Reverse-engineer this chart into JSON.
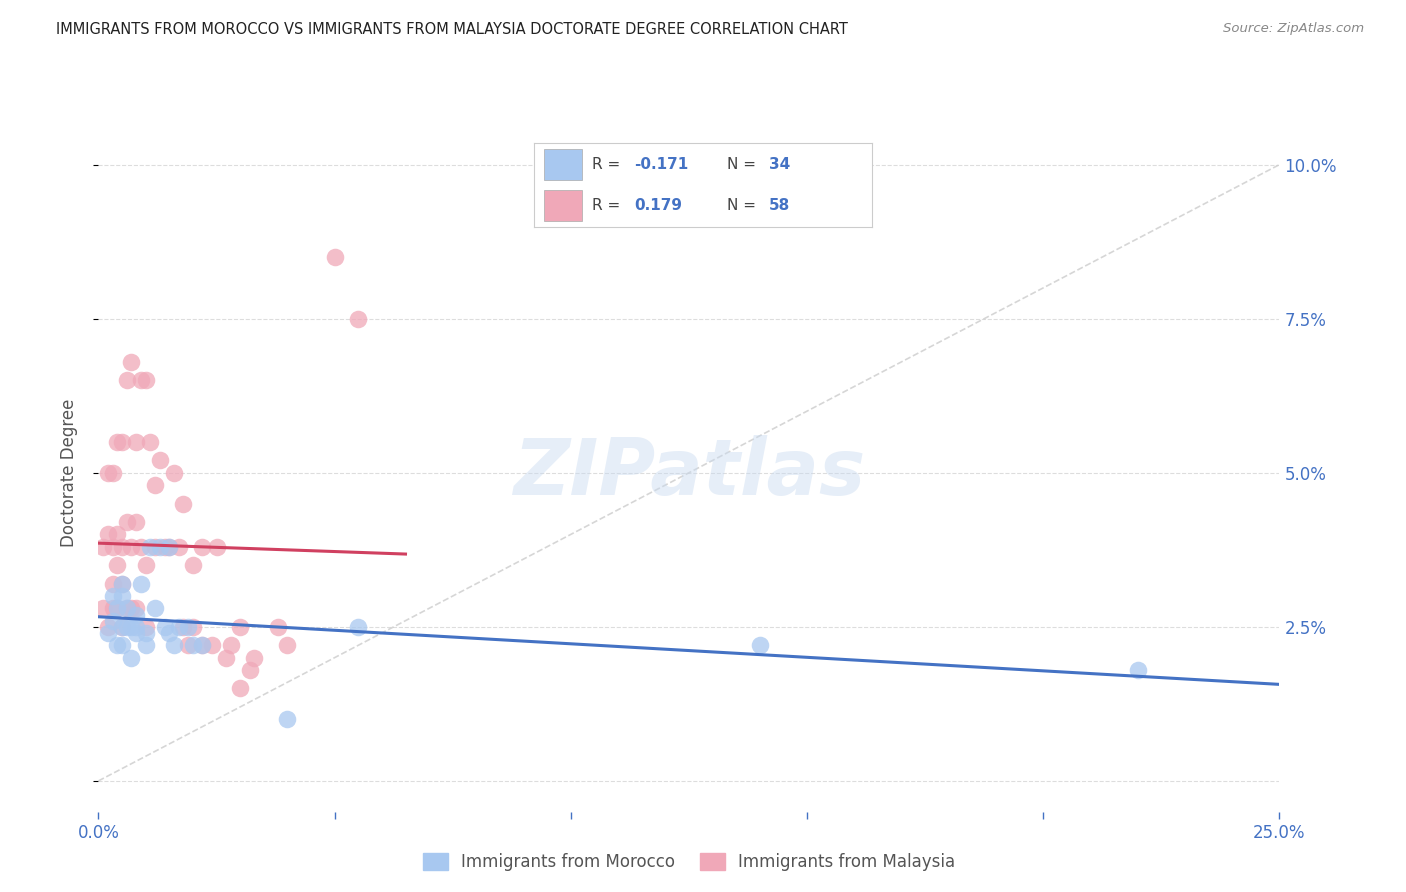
{
  "title": "IMMIGRANTS FROM MOROCCO VS IMMIGRANTS FROM MALAYSIA DOCTORATE DEGREE CORRELATION CHART",
  "source": "Source: ZipAtlas.com",
  "ylabel": "Doctorate Degree",
  "watermark": "ZIPatlas",
  "xlim": [
    0.0,
    0.25
  ],
  "ylim": [
    -0.005,
    0.105
  ],
  "morocco_R": -0.171,
  "morocco_N": 34,
  "malaysia_R": 0.179,
  "malaysia_N": 58,
  "morocco_color": "#a8c8f0",
  "malaysia_color": "#f0a8b8",
  "morocco_line_color": "#4472c4",
  "malaysia_line_color": "#d04060",
  "diagonal_color": "#cccccc",
  "grid_color": "#dddddd",
  "background_color": "#ffffff",
  "title_color": "#222222",
  "axis_label_color": "#4472c4",
  "morocco_scatter_x": [
    0.002,
    0.003,
    0.003,
    0.004,
    0.004,
    0.005,
    0.005,
    0.005,
    0.005,
    0.006,
    0.006,
    0.007,
    0.007,
    0.008,
    0.008,
    0.008,
    0.009,
    0.01,
    0.01,
    0.011,
    0.012,
    0.013,
    0.014,
    0.015,
    0.015,
    0.016,
    0.017,
    0.019,
    0.02,
    0.022,
    0.04,
    0.055,
    0.14,
    0.22
  ],
  "morocco_scatter_y": [
    0.024,
    0.026,
    0.03,
    0.022,
    0.028,
    0.025,
    0.022,
    0.03,
    0.032,
    0.025,
    0.028,
    0.025,
    0.02,
    0.024,
    0.025,
    0.027,
    0.032,
    0.024,
    0.022,
    0.038,
    0.028,
    0.038,
    0.025,
    0.038,
    0.024,
    0.022,
    0.025,
    0.025,
    0.022,
    0.022,
    0.01,
    0.025,
    0.022,
    0.018
  ],
  "malaysia_scatter_x": [
    0.001,
    0.001,
    0.002,
    0.002,
    0.002,
    0.003,
    0.003,
    0.003,
    0.003,
    0.004,
    0.004,
    0.004,
    0.004,
    0.005,
    0.005,
    0.005,
    0.005,
    0.006,
    0.006,
    0.006,
    0.007,
    0.007,
    0.007,
    0.008,
    0.008,
    0.008,
    0.009,
    0.009,
    0.01,
    0.01,
    0.01,
    0.011,
    0.012,
    0.012,
    0.013,
    0.014,
    0.015,
    0.016,
    0.017,
    0.018,
    0.018,
    0.019,
    0.02,
    0.02,
    0.022,
    0.022,
    0.024,
    0.025,
    0.027,
    0.028,
    0.03,
    0.03,
    0.032,
    0.033,
    0.038,
    0.04,
    0.05,
    0.055
  ],
  "malaysia_scatter_y": [
    0.028,
    0.038,
    0.025,
    0.04,
    0.05,
    0.028,
    0.032,
    0.038,
    0.05,
    0.028,
    0.035,
    0.04,
    0.055,
    0.025,
    0.032,
    0.038,
    0.055,
    0.028,
    0.042,
    0.065,
    0.028,
    0.038,
    0.068,
    0.028,
    0.042,
    0.055,
    0.038,
    0.065,
    0.025,
    0.035,
    0.065,
    0.055,
    0.038,
    0.048,
    0.052,
    0.038,
    0.038,
    0.05,
    0.038,
    0.025,
    0.045,
    0.022,
    0.035,
    0.025,
    0.022,
    0.038,
    0.022,
    0.038,
    0.02,
    0.022,
    0.015,
    0.025,
    0.018,
    0.02,
    0.025,
    0.022,
    0.085,
    0.075
  ]
}
